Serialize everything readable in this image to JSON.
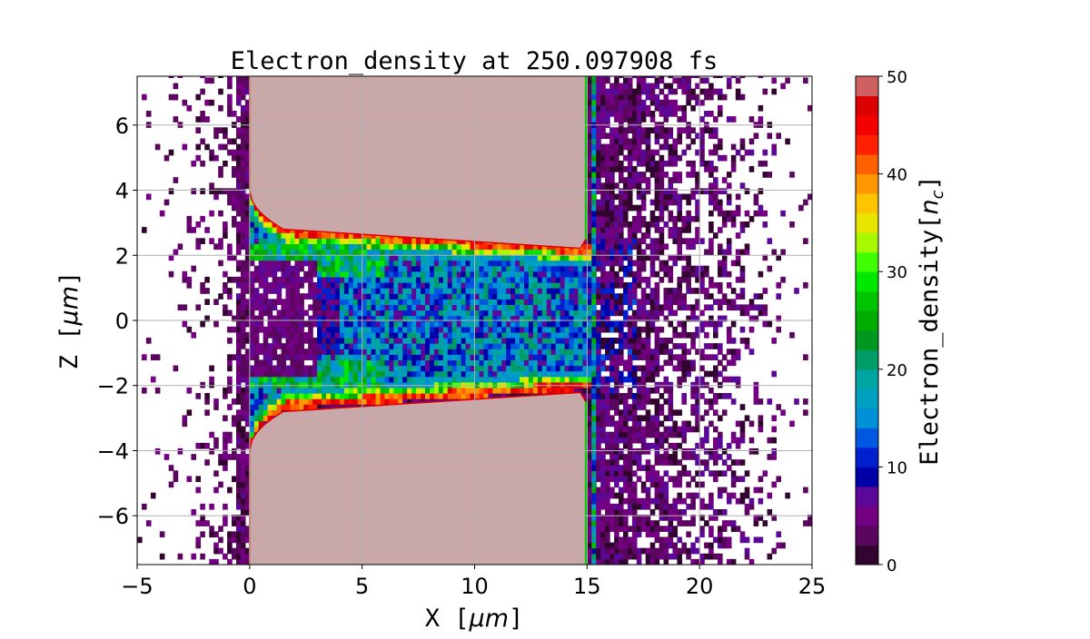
{
  "chart_data": {
    "type": "heatmap",
    "title": "Electron_density at 250.097908 fs",
    "xlabel": "X [μm]",
    "ylabel": "Z [μm]",
    "xlim": [
      -5,
      25
    ],
    "ylim": [
      -7.5,
      7.5
    ],
    "xticks": [
      -5,
      0,
      5,
      10,
      15,
      20,
      25
    ],
    "yticks": [
      -6,
      -4,
      -2,
      0,
      2,
      4,
      6
    ],
    "xtick_labels": [
      "−5",
      "0",
      "5",
      "10",
      "15",
      "20",
      "25"
    ],
    "ytick_labels": [
      "−6",
      "−4",
      "−2",
      "0",
      "2",
      "4",
      "6"
    ],
    "grid": true,
    "colorbar": {
      "label": "Electron_density[n_c]",
      "label_main": "Electron_density[",
      "label_sub_n": "n",
      "label_sub_c": "c",
      "label_end": "]",
      "range": [
        0,
        50
      ],
      "level_step": 2,
      "ticks": [
        0,
        10,
        20,
        30,
        40,
        50
      ],
      "tick_labels": [
        "0",
        "10",
        "20",
        "30",
        "40",
        "50"
      ],
      "colormap_stops": [
        [
          0,
          "#1a0012"
        ],
        [
          2,
          "#4a0a4a"
        ],
        [
          4,
          "#6a0072"
        ],
        [
          6,
          "#7c0090"
        ],
        [
          8,
          "#3a10a0"
        ],
        [
          9,
          "#0000a8"
        ],
        [
          12,
          "#0030e0"
        ],
        [
          14,
          "#0080e0"
        ],
        [
          16,
          "#00a0d0"
        ],
        [
          18,
          "#00a0b0"
        ],
        [
          20,
          "#00a890"
        ],
        [
          22,
          "#009040"
        ],
        [
          24,
          "#00a000"
        ],
        [
          28,
          "#00d000"
        ],
        [
          30,
          "#00ff00"
        ],
        [
          32,
          "#80ff00"
        ],
        [
          34,
          "#d0f000"
        ],
        [
          36,
          "#ffd800"
        ],
        [
          38,
          "#ffb000"
        ],
        [
          40,
          "#ff8000"
        ],
        [
          42,
          "#ff4000"
        ],
        [
          44,
          "#ff0000"
        ],
        [
          48,
          "#d00000"
        ],
        [
          49,
          "#d06060"
        ],
        [
          50,
          "#c8a8a8"
        ]
      ]
    },
    "structure": {
      "target_x_range": [
        0,
        15
      ],
      "target_density": 50,
      "channel_half_width_left": 2.8,
      "channel_half_width_right": 2.2,
      "front_edge_funnel_z": 4,
      "channel_mean_density": 14,
      "rear_plasma_x_extent": 20,
      "rear_plasma_density": 4
    }
  }
}
